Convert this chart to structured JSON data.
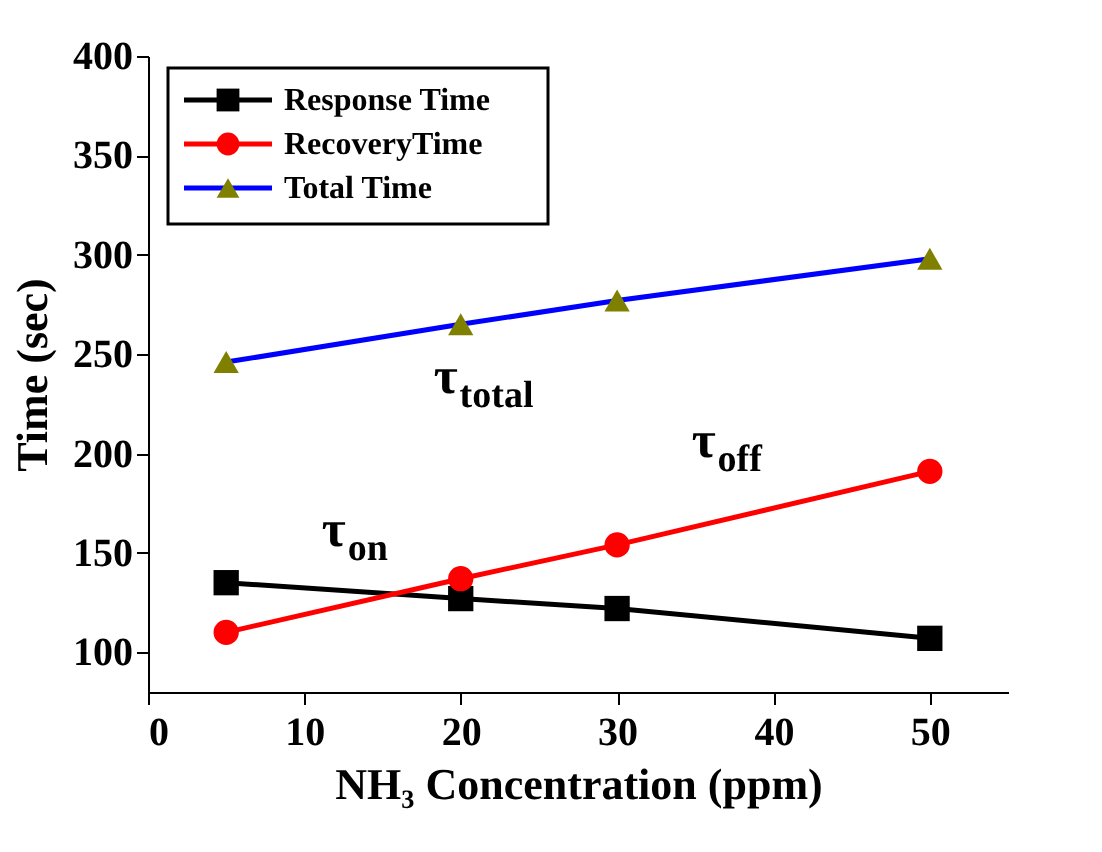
{
  "chart_data": {
    "type": "line",
    "xlabel": "NH₃ Concentration (ppm)",
    "ylabel": "Time (sec)",
    "x": [
      5,
      20,
      30,
      50
    ],
    "series": [
      {
        "name": "Response Time",
        "color": "#000000",
        "marker": "square",
        "values": [
          135,
          127,
          122,
          107
        ]
      },
      {
        "name": "RecoveryTime",
        "color": "#ff0000",
        "marker": "circle",
        "values": [
          110,
          137,
          154,
          191
        ]
      },
      {
        "name": "Total Time",
        "color": "#0000ff",
        "colors": [
          "#808000",
          "#808000",
          "#808000",
          "#808000"
        ],
        "marker": "triangle",
        "values": [
          246,
          265,
          277,
          298
        ]
      }
    ],
    "xlim": [
      0,
      55
    ],
    "xticks": [
      0,
      10,
      20,
      30,
      40,
      50
    ],
    "ylim": [
      80,
      400
    ],
    "yticks": [
      100,
      150,
      200,
      250,
      300,
      350,
      400
    ],
    "grid": false,
    "legend": "top left",
    "annotations": [
      "τ$_{total}$",
      "τ$_{on}$",
      "τ$_{off}$"
    ]
  }
}
